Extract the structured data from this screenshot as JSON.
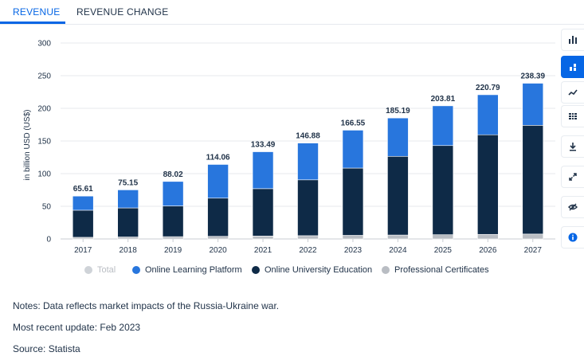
{
  "tabs": [
    {
      "label": "REVENUE"
    },
    {
      "label": "REVENUE CHANGE"
    }
  ],
  "chart_data": {
    "type": "bar",
    "stacked": true,
    "categories": [
      "2017",
      "2018",
      "2019",
      "2020",
      "2021",
      "2022",
      "2023",
      "2024",
      "2025",
      "2026",
      "2027"
    ],
    "series": [
      {
        "name": "Professional Certificates",
        "color": "#b9bdc3",
        "values": [
          2.5,
          3,
          3.5,
          4,
          4.5,
          5,
          5.5,
          6,
          6.5,
          7,
          7.5
        ]
      },
      {
        "name": "Online University Education",
        "color": "#0e2a47",
        "values": [
          41.5,
          44.5,
          47,
          58.5,
          72.5,
          85.5,
          103,
          120.5,
          136.5,
          152.5,
          166.5
        ]
      },
      {
        "name": "Online Learning Platform",
        "color": "#2876dd",
        "values": [
          21.61,
          27.65,
          37.52,
          51.56,
          56.49,
          56.38,
          58.05,
          58.69,
          60.81,
          61.29,
          64.39
        ]
      }
    ],
    "totals": [
      "65.61",
      "75.15",
      "88.02",
      "114.06",
      "133.49",
      "146.88",
      "166.55",
      "185.19",
      "203.81",
      "220.79",
      "238.39"
    ],
    "ylabel": "in billion USD (US$)",
    "yticks": [
      "0",
      "50",
      "100",
      "150",
      "200",
      "250",
      "300"
    ],
    "ylim": [
      0,
      300
    ],
    "grid": true,
    "legend_position": "bottom",
    "legend": [
      {
        "name": "Total",
        "color": "#cfd3d8",
        "muted": true
      },
      {
        "name": "Online Learning Platform",
        "color": "#2876dd"
      },
      {
        "name": "Online University Education",
        "color": "#0e2a47"
      },
      {
        "name": "Professional Certificates",
        "color": "#b9bdc3"
      }
    ]
  },
  "notes": {
    "notes": "Notes: Data reflects market impacts of the Russia-Ukraine war.",
    "update": "Most recent update: Feb 2023",
    "source": "Source: Statista"
  },
  "toolbar": [
    {
      "icon": "bar-chart-icon",
      "active": false
    },
    {
      "icon": "stacked-bar-icon",
      "active": true
    },
    {
      "icon": "line-chart-icon",
      "active": false
    },
    {
      "icon": "table-icon",
      "active": false
    },
    {
      "icon": "download-icon",
      "active": false
    },
    {
      "icon": "expand-icon",
      "active": false
    },
    {
      "icon": "hide-icon",
      "active": false
    },
    {
      "icon": "info-icon",
      "active": false
    }
  ]
}
